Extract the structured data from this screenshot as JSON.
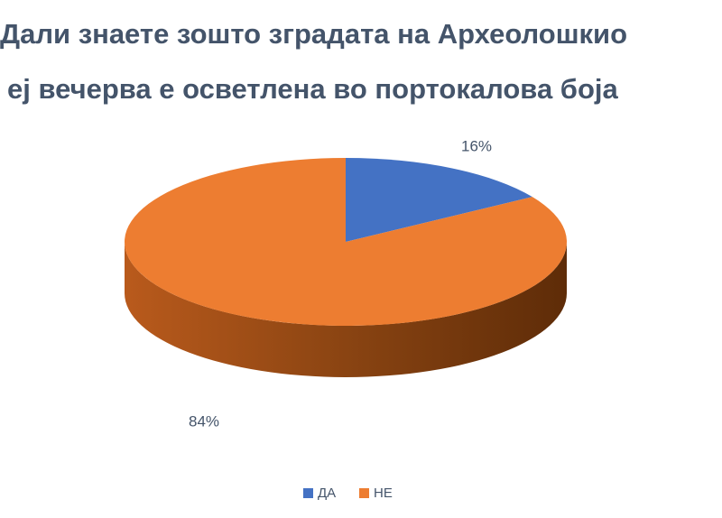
{
  "chart_data": {
    "type": "pie3d",
    "title_lines": [
      "Дали знаете зошто зградата на Археолошкио",
      "еј вечерва е осветлена во портокалова боја"
    ],
    "categories": [
      "ДА",
      "НЕ"
    ],
    "values": [
      16,
      84
    ],
    "value_labels": [
      "16%",
      "84%"
    ],
    "colors": [
      "#4472c4",
      "#ed7d31"
    ],
    "legend": "bottom"
  }
}
